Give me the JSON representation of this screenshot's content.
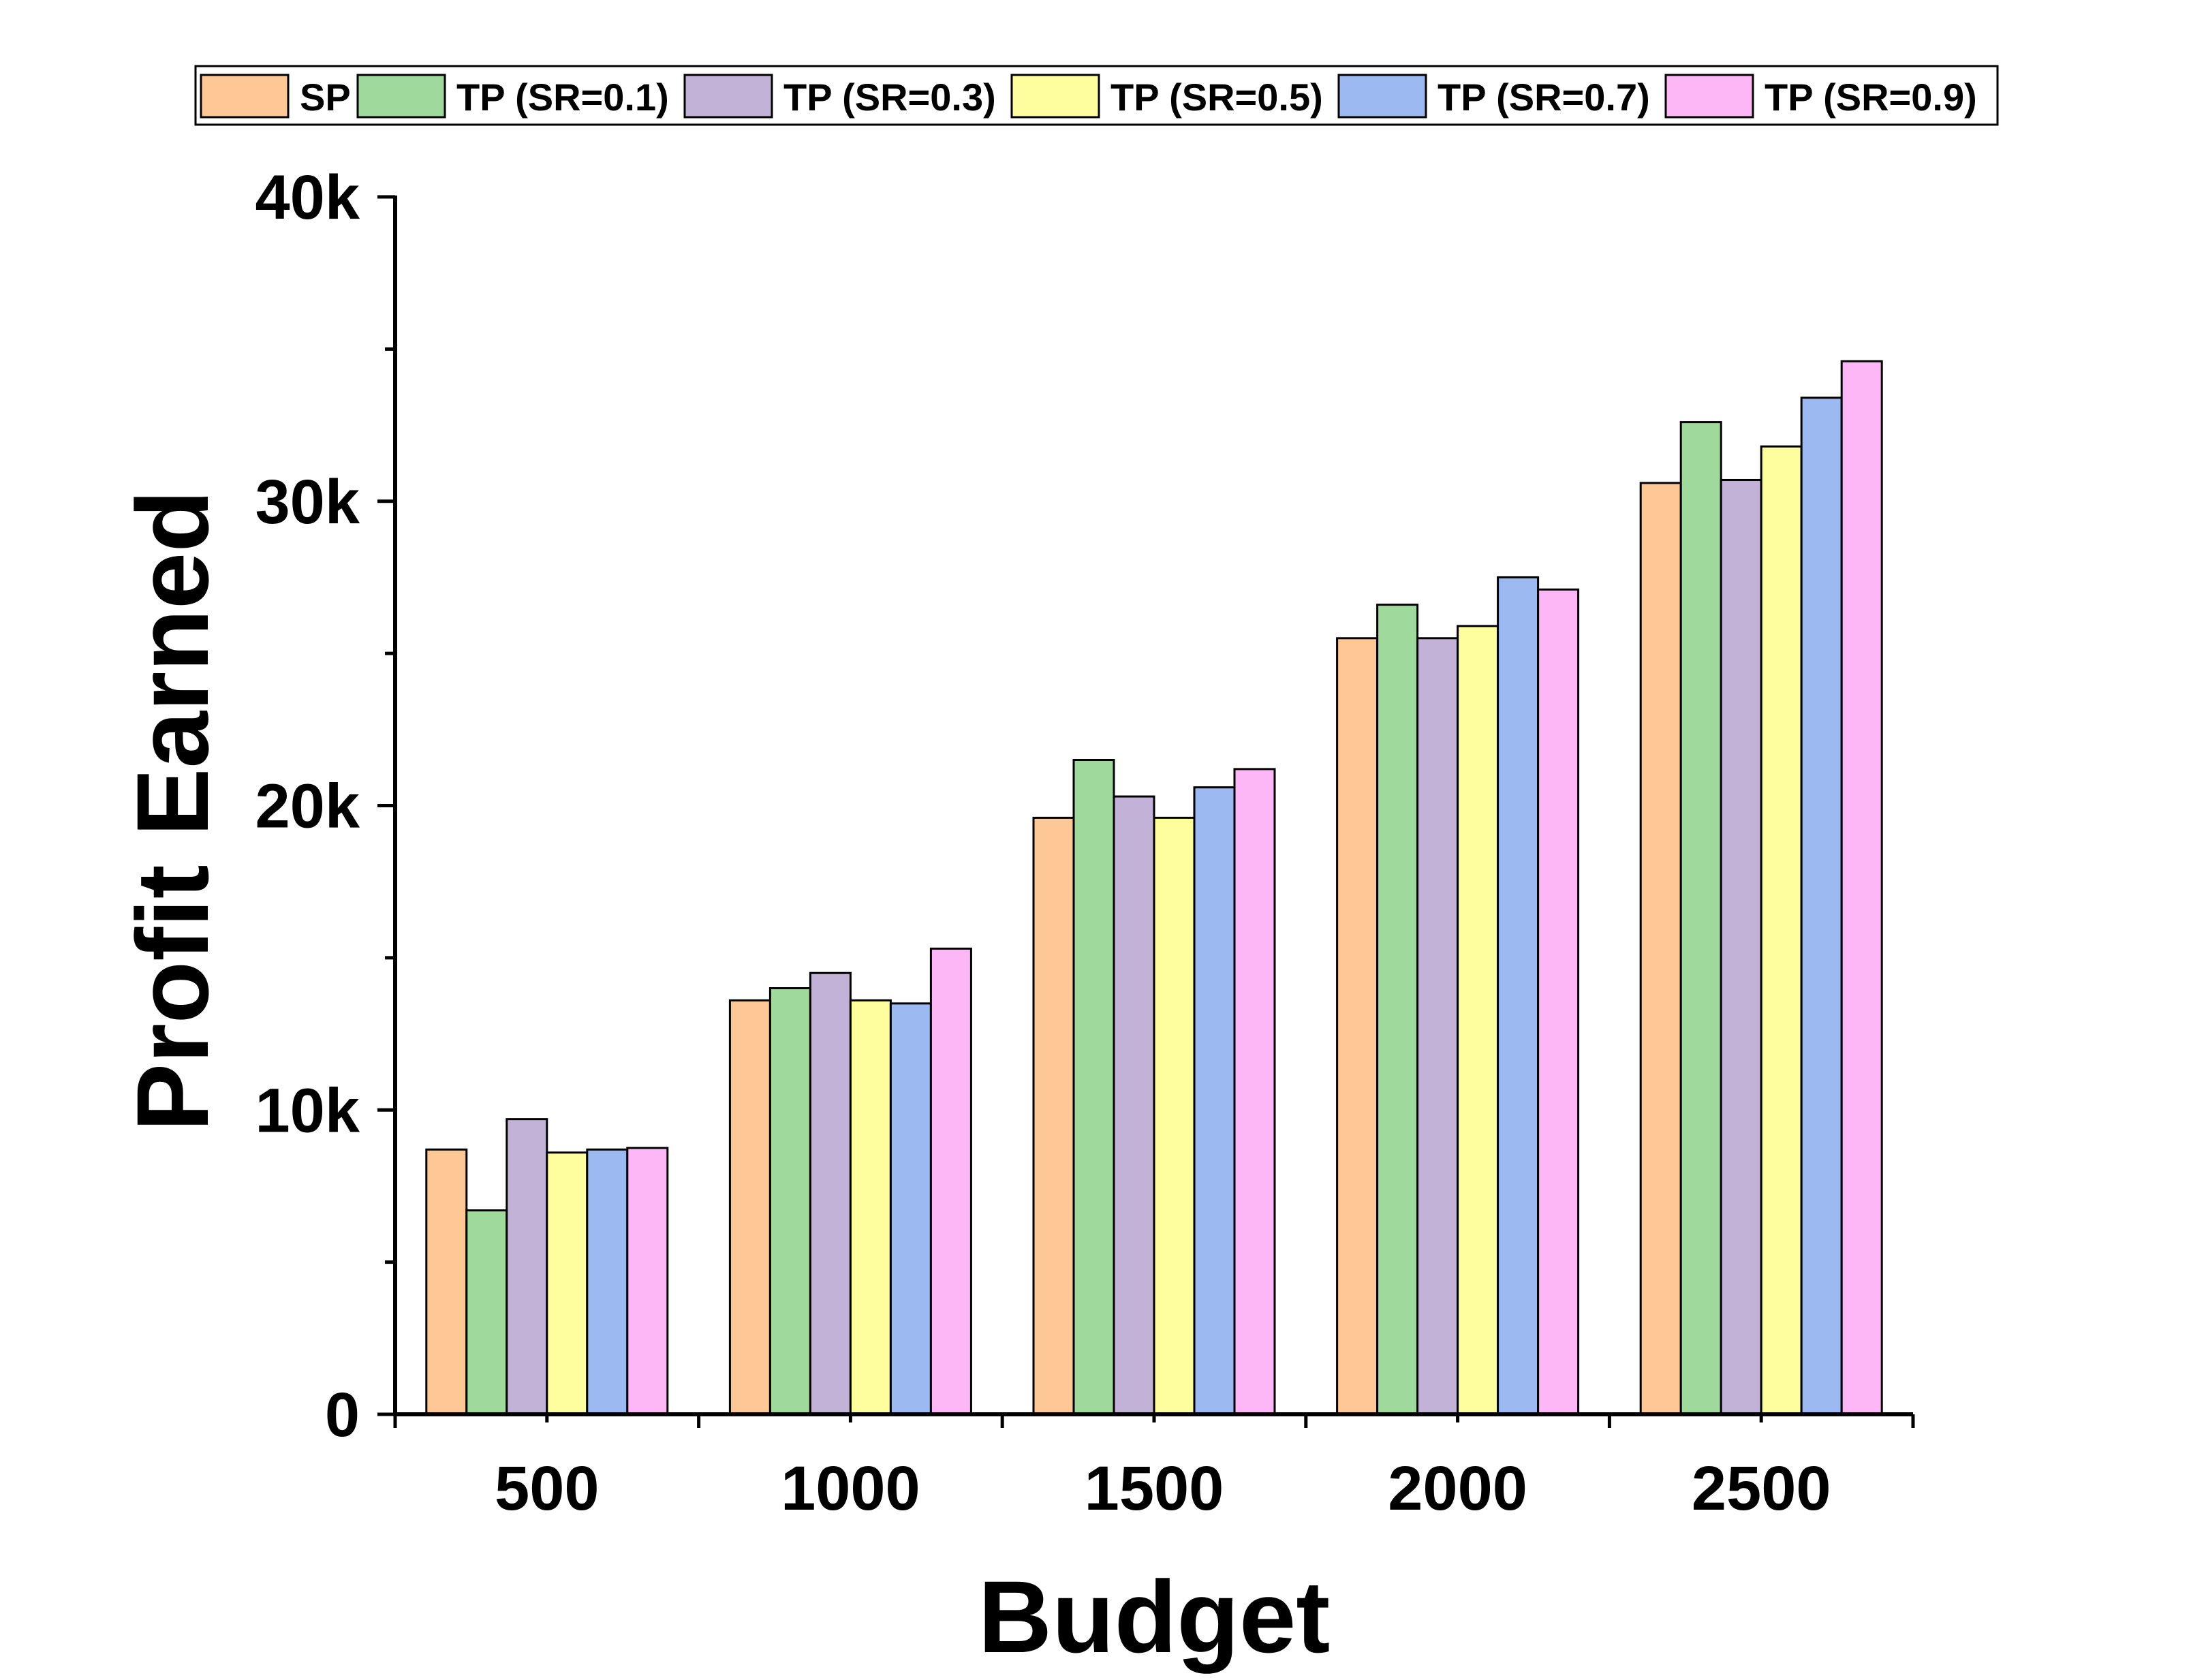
{
  "chart_data": {
    "type": "bar",
    "title": "",
    "xlabel": "Budget",
    "ylabel": "Profit Earned",
    "categories": [
      "500",
      "1000",
      "1500",
      "2000",
      "2500"
    ],
    "ylim": [
      0,
      40000
    ],
    "yticks": [
      {
        "value": 0,
        "label": "0"
      },
      {
        "value": 10000,
        "label": "10k"
      },
      {
        "value": 20000,
        "label": "20k"
      },
      {
        "value": 30000,
        "label": "30k"
      },
      {
        "value": 40000,
        "label": "40k"
      }
    ],
    "legend_position": "top",
    "grid": false,
    "series": [
      {
        "name": "SP",
        "color": "#FDC896",
        "values": [
          8700,
          13600,
          19600,
          25500,
          30600
        ]
      },
      {
        "name": "TP (SR=0.1)",
        "color": "#9FD99C",
        "values": [
          6700,
          14000,
          21500,
          26600,
          32600
        ]
      },
      {
        "name": "TP (SR=0.3)",
        "color": "#C3B2D8",
        "values": [
          9700,
          14500,
          20300,
          25500,
          30700
        ]
      },
      {
        "name": "TP (SR=0.5)",
        "color": "#FEFE9E",
        "values": [
          8600,
          13600,
          19600,
          25900,
          31800
        ]
      },
      {
        "name": "TP (SR=0.7)",
        "color": "#9DB9F2",
        "values": [
          8700,
          13500,
          20600,
          27500,
          33400
        ]
      },
      {
        "name": "TP (SR=0.9)",
        "color": "#FDB6F6",
        "values": [
          8750,
          15300,
          21200,
          27100,
          34600
        ]
      }
    ]
  }
}
